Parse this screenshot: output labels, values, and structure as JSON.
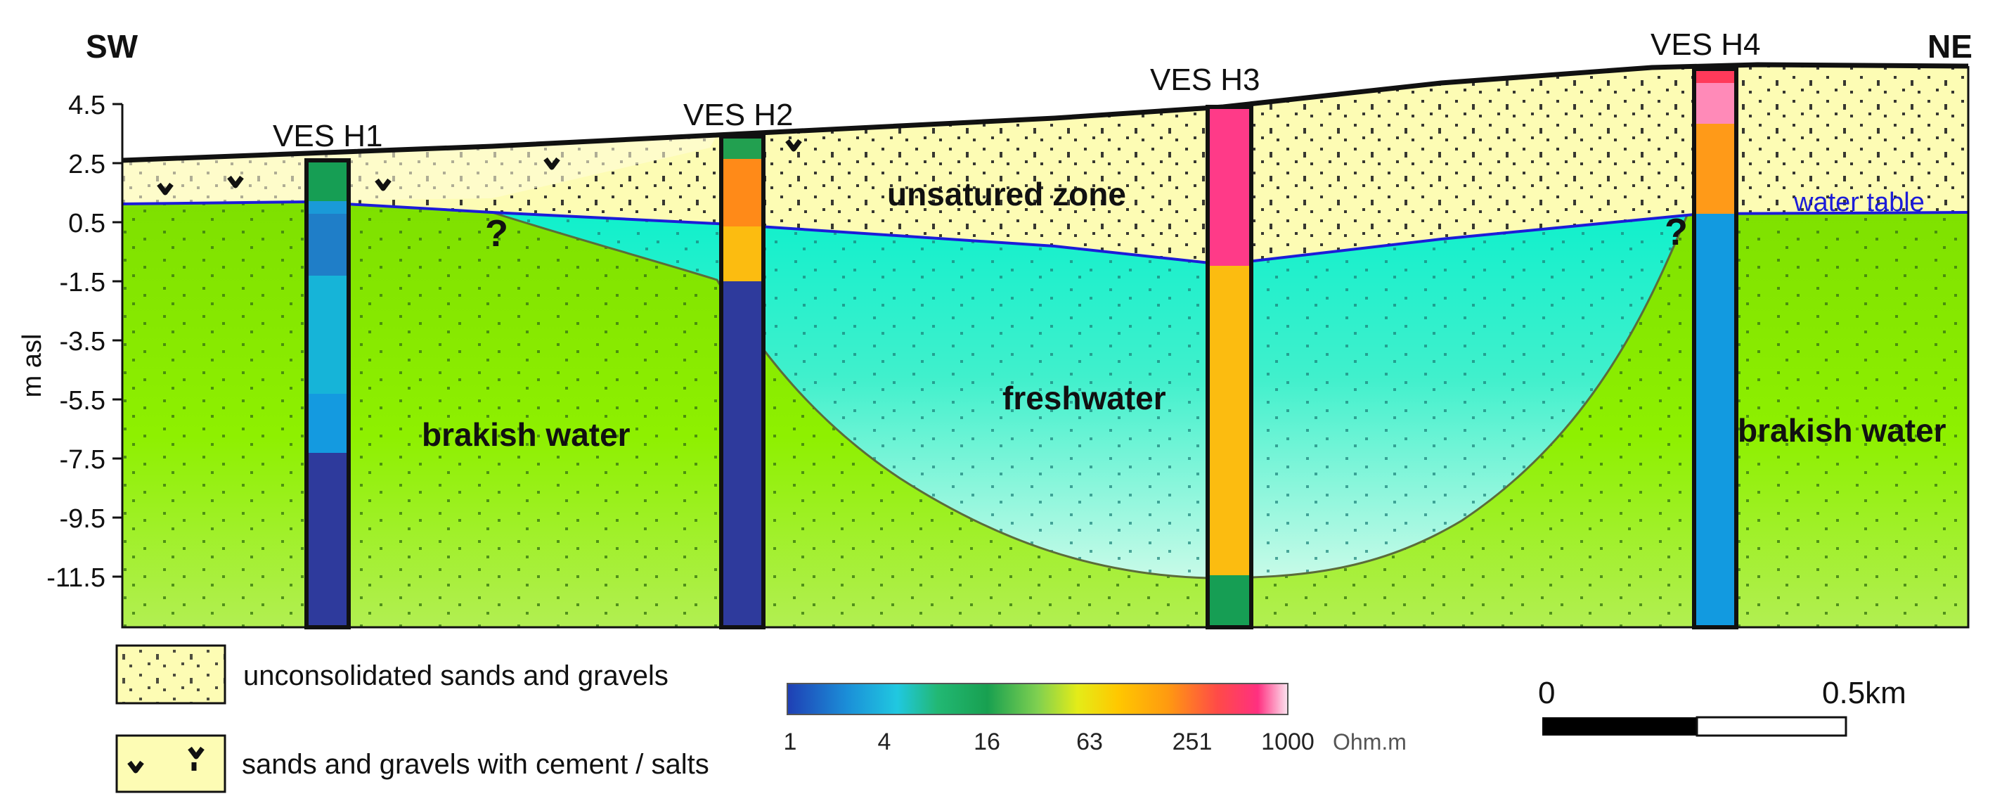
{
  "directions": {
    "left": "SW",
    "right": "NE"
  },
  "axis": {
    "ylabel": "m asl",
    "ticks": [
      "4.5",
      "2.5",
      "0.5",
      "-1.5",
      "-3.5",
      "-5.5",
      "-7.5",
      "-9.5",
      "-11.5"
    ]
  },
  "soundings": [
    {
      "name": "VES H1"
    },
    {
      "name": "VES H2"
    },
    {
      "name": "VES H3"
    },
    {
      "name": "VES H4"
    }
  ],
  "zones": {
    "unsaturated": "unsatured zone",
    "fresh": "freshwater",
    "brackish_left": "brakish water",
    "brackish_right": "brakish water",
    "water_table": "water table",
    "uncertain": "?"
  },
  "legend": {
    "sands": "unconsolidated sands and gravels",
    "cement": "sands and gravels with cement / salts"
  },
  "colorbar": {
    "ticks": [
      "1",
      "4",
      "16",
      "63",
      "251",
      "1000"
    ],
    "unit": "Ohm.m"
  },
  "scalebar": {
    "start": "0",
    "end": "0.5km"
  },
  "colors": {
    "sand": "#fdfcb4",
    "brackish": "#8ee800",
    "fresh": "#22f0d0",
    "water_table": "#1c1cd8"
  }
}
